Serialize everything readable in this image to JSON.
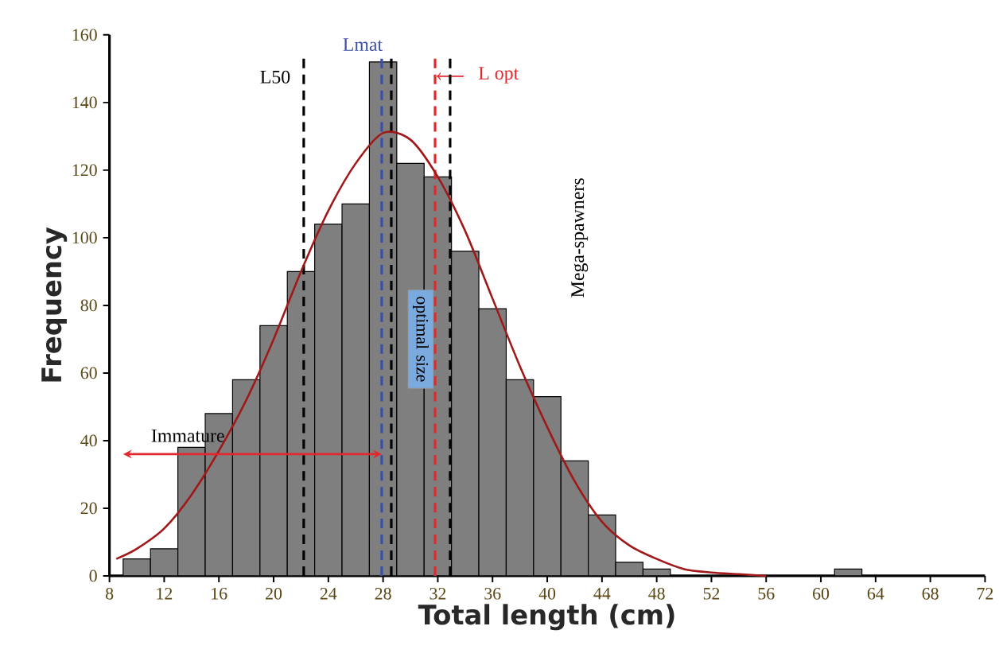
{
  "chart_data": {
    "type": "histogram",
    "xlabel": "Total length (cm)",
    "ylabel": "Frequency",
    "bins": [
      9,
      11,
      13,
      15,
      17,
      19,
      21,
      23,
      25,
      27,
      29,
      31,
      33,
      35,
      37,
      39,
      41,
      43,
      45,
      47,
      49,
      51,
      53,
      55,
      57,
      59,
      61,
      63
    ],
    "values": [
      5,
      8,
      38,
      48,
      58,
      74,
      90,
      104,
      110,
      152,
      122,
      118,
      96,
      79,
      58,
      53,
      34,
      18,
      4,
      2,
      0,
      0,
      0,
      0,
      0,
      0,
      2
    ],
    "color": "#7f7f7f",
    "series": [
      {
        "type": "line",
        "color": "#a01818",
        "x": [
          8.5,
          10,
          12,
          14,
          16,
          18,
          20,
          22,
          24,
          26,
          28,
          30,
          32,
          34,
          36,
          38,
          40,
          42,
          44,
          46,
          48,
          50,
          52,
          54,
          56
        ],
        "values": [
          5,
          8,
          14,
          24,
          37,
          52,
          70,
          90,
          108,
          122,
          131,
          129,
          118,
          102,
          82,
          62,
          44,
          28,
          16,
          9,
          5,
          2,
          1,
          0.5,
          0
        ]
      }
    ],
    "xlim": [
      8,
      72
    ],
    "xticks": [
      8,
      12,
      16,
      20,
      24,
      28,
      32,
      36,
      40,
      44,
      48,
      52,
      56,
      60,
      64,
      68,
      72
    ],
    "ylim": [
      0,
      160
    ],
    "yticks": [
      0,
      20,
      40,
      60,
      80,
      100,
      120,
      140,
      160
    ],
    "ref_lines": [
      {
        "axis": "x",
        "value": 22.2,
        "label": "L50",
        "color": "#000000",
        "line_style": "dashed"
      },
      {
        "axis": "x",
        "value": 27.9,
        "label": "Lmat",
        "color": "#3a4fa8",
        "line_style": "dashed"
      },
      {
        "axis": "x",
        "value": 28.6,
        "label": null,
        "color": "#000000",
        "line_style": "dashed"
      },
      {
        "axis": "x",
        "value": 31.8,
        "label": "L opt",
        "color": "#e0282e",
        "line_style": "dashed"
      },
      {
        "axis": "x",
        "value": 32.9,
        "label": null,
        "color": "#000000",
        "line_style": "dashed"
      }
    ],
    "annotations": [
      {
        "text": "Immature",
        "x": 13.5,
        "y": 40
      },
      {
        "text": "optimal size",
        "x": 30.75,
        "y": 70
      },
      "Mega-spawners"
    ]
  }
}
